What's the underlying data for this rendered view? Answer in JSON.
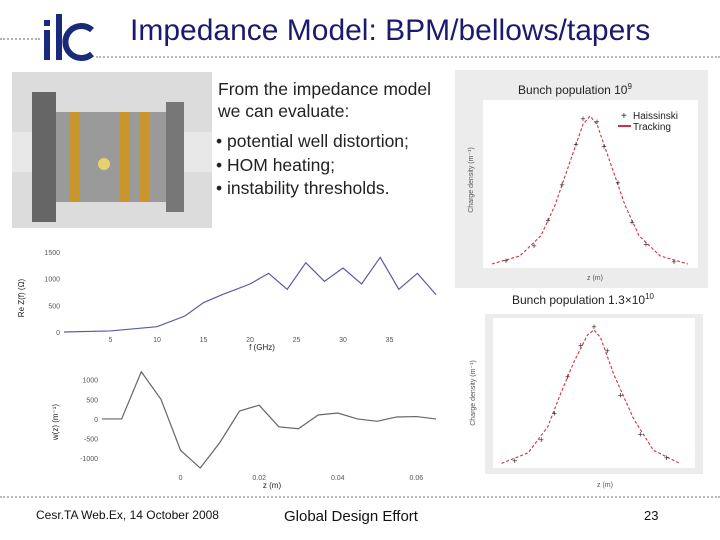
{
  "slide": {
    "title": "Impedance Model: BPM/bellows/tapers",
    "logo_text": "ilc",
    "intro": "From the impedance model we can evaluate:",
    "bullets": [
      "potential well distortion;",
      "HOM heating;",
      "instability thresholds."
    ],
    "footer_left": "Cesr.TA Web.Ex, 14 October 2008",
    "footer_center": "Global Design Effort",
    "page_number": "23"
  },
  "colors": {
    "title": "#1a1a6e",
    "logo": "#1a2a7a",
    "fit_curve": "#d03040",
    "panel": "#ececec"
  },
  "charts": {
    "impedance": {
      "ylabel": "Re Z(f) (Ω)",
      "xlabel": "f (GHz)",
      "yticks": [
        "1500",
        "1000",
        "500",
        "0"
      ],
      "xticks": [
        "5",
        "10",
        "15",
        "20",
        "25",
        "30",
        "35"
      ]
    },
    "wake": {
      "ylabel": "w(z) (m⁻¹)",
      "xlabel": "z (m)",
      "yticks": [
        "1000",
        "500",
        "0",
        "-500",
        "-1000"
      ],
      "xticks": [
        "0",
        "0.02",
        "0.04",
        "0.06"
      ]
    },
    "dist1": {
      "title_main": "Bunch population 10",
      "title_exp": "9",
      "ylabel": "Charge density (m⁻¹)",
      "xlabel": "z (m)",
      "legend": [
        "Haissinski",
        "Tracking"
      ]
    },
    "dist2": {
      "title_main": "Bunch population 1.3×10",
      "title_exp": "10",
      "ylabel": "Charge density (m⁻¹)",
      "xlabel": "z (m)"
    }
  },
  "chart_data": [
    {
      "type": "line",
      "title": "",
      "xlabel": "f (GHz)",
      "ylabel": "Re Z(f) (Ω)",
      "xlim": [
        0,
        40
      ],
      "ylim": [
        0,
        1800
      ],
      "series": [
        {
          "x": [
            0,
            5,
            10,
            13,
            15,
            17,
            20,
            22,
            24,
            26,
            28,
            30,
            32,
            34,
            36,
            38,
            40
          ],
          "y": [
            0,
            20,
            100,
            300,
            550,
            700,
            900,
            1100,
            800,
            1300,
            950,
            1200,
            900,
            1400,
            800,
            1100,
            700
          ]
        }
      ]
    },
    {
      "type": "line",
      "title": "",
      "xlabel": "z (m)",
      "ylabel": "w(z) (m⁻¹)",
      "xlim": [
        -0.02,
        0.065
      ],
      "ylim": [
        -1300,
        1500
      ],
      "series": [
        {
          "x": [
            -0.02,
            -0.015,
            -0.01,
            -0.005,
            0,
            0.005,
            0.01,
            0.015,
            0.02,
            0.025,
            0.03,
            0.035,
            0.04,
            0.045,
            0.05,
            0.055,
            0.06,
            0.065
          ],
          "y": [
            0,
            0,
            1200,
            500,
            -800,
            -1250,
            -600,
            200,
            350,
            -200,
            -250,
            100,
            150,
            0,
            -60,
            50,
            60,
            0
          ]
        }
      ]
    },
    {
      "type": "scatter",
      "title": "Bunch population 10^9",
      "xlabel": "z (m)",
      "ylabel": "Charge density (m⁻¹)",
      "xlim": [
        -0.015,
        0.015
      ],
      "ylim": [
        0,
        160
      ],
      "series": [
        {
          "name": "Haissinski",
          "x": [
            -0.014,
            -0.01,
            -0.007,
            -0.005,
            -0.003,
            -0.001,
            0,
            0.001,
            0.003,
            0.005,
            0.007,
            0.01,
            0.014
          ],
          "y": [
            2,
            10,
            30,
            60,
            100,
            140,
            148,
            140,
            100,
            60,
            30,
            10,
            2
          ]
        },
        {
          "name": "Tracking",
          "x": [
            -0.012,
            -0.008,
            -0.006,
            -0.004,
            -0.002,
            -0.001,
            0.001,
            0.002,
            0.004,
            0.006,
            0.008,
            0.012
          ],
          "y": [
            5,
            20,
            45,
            80,
            120,
            145,
            142,
            118,
            82,
            43,
            21,
            4
          ]
        }
      ]
    },
    {
      "type": "scatter",
      "title": "Bunch population 1.3×10^10",
      "xlabel": "z (m)",
      "ylabel": "Charge density (m⁻¹)",
      "xlim": [
        -0.015,
        0.015
      ],
      "ylim": [
        0,
        55
      ],
      "series": [
        {
          "x": [
            -0.014,
            -0.01,
            -0.007,
            -0.005,
            -0.003,
            -0.001,
            0,
            0.001,
            0.003,
            0.006,
            0.009,
            0.013
          ],
          "y": [
            1,
            5,
            15,
            28,
            40,
            50,
            52,
            49,
            35,
            18,
            6,
            1
          ]
        },
        {
          "x": [
            -0.012,
            -0.008,
            -0.006,
            -0.004,
            -0.002,
            0,
            0.002,
            0.004,
            0.007,
            0.011
          ],
          "y": [
            2,
            10,
            20,
            34,
            46,
            53,
            44,
            27,
            12,
            3
          ]
        }
      ]
    }
  ]
}
